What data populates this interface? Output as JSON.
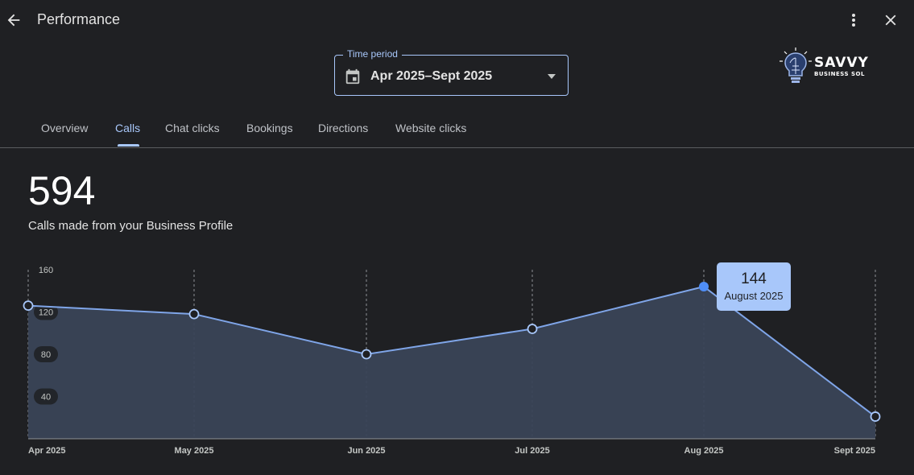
{
  "header": {
    "title": "Performance",
    "back_icon": "arrow-back-icon",
    "more_icon": "more-vert-icon",
    "close_icon": "close-icon"
  },
  "time_period": {
    "label": "Time period",
    "value": "Apr 2025–Sept 2025",
    "icon": "calendar-icon"
  },
  "logo": {
    "word": "SAVVY",
    "sub": "BUSINESS SOL"
  },
  "tabs": [
    {
      "label": "Overview",
      "active": false
    },
    {
      "label": "Calls",
      "active": true
    },
    {
      "label": "Chat clicks",
      "active": false
    },
    {
      "label": "Bookings",
      "active": false
    },
    {
      "label": "Directions",
      "active": false
    },
    {
      "label": "Website clicks",
      "active": false
    }
  ],
  "summary": {
    "total": "594",
    "description": "Calls made from your Business Profile"
  },
  "colors": {
    "accent": "#a8c7fa",
    "line": "#7fa5e8",
    "selected_point": "#4f8ef7",
    "area": "#3a4457",
    "background": "#1f2023"
  },
  "tooltip": {
    "value": "144",
    "label": "August 2025"
  },
  "chart_data": {
    "type": "area",
    "categories": [
      "Apr 2025",
      "May 2025",
      "Jun 2025",
      "Jul 2025",
      "Aug 2025",
      "Sept 2025"
    ],
    "values": [
      126,
      118,
      80,
      104,
      144,
      21
    ],
    "yticks": [
      40,
      80,
      120,
      160
    ],
    "ylim": [
      0,
      160
    ],
    "grid": "vertical dashed",
    "highlighted_index": 4
  }
}
